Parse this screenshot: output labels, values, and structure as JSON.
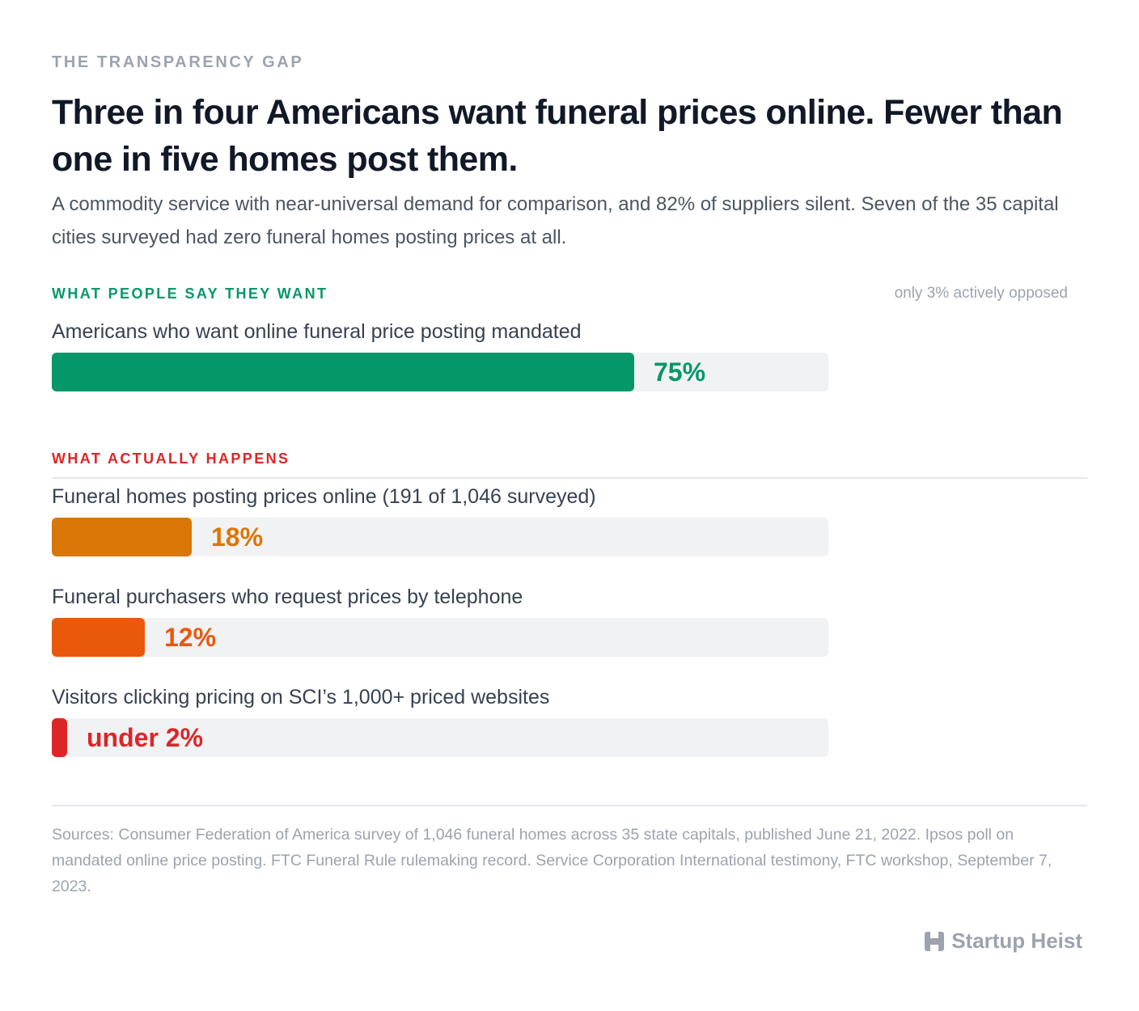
{
  "kicker": "THE TRANSPARENCY GAP",
  "headline": "Three in four Americans want funeral prices online. Fewer than one in five homes post them.",
  "dek": "A commodity service with near-universal demand for comparison, and 82% of suppliers silent. Seven of the 35 capital cities surveyed had zero funeral homes posting prices at all.",
  "sections": {
    "want": {
      "label": "WHAT PEOPLE SAY THEY WANT",
      "note": "only 3% actively opposed",
      "color": "#05976a"
    },
    "happens": {
      "label": "WHAT ACTUALLY HAPPENS",
      "color": "#dc2626"
    }
  },
  "chart_data": {
    "type": "bar",
    "orientation": "horizontal",
    "unit": "%",
    "xlim": [
      0,
      100
    ],
    "bars": [
      {
        "label": "Americans who want online funeral price posting mandated",
        "value": 75,
        "value_label": "75%",
        "color": "#05976a",
        "section": "want"
      },
      {
        "label": "Funeral homes posting prices online (191 of 1,046 surveyed)",
        "value": 18,
        "value_label": "18%",
        "color": "#d97706",
        "section": "happens"
      },
      {
        "label": "Funeral purchasers who request prices by telephone",
        "value": 12,
        "value_label": "12%",
        "color": "#ea580c",
        "section": "happens"
      },
      {
        "label": "Visitors clicking pricing on SCI’s 1,000+ priced websites",
        "value": 2,
        "value_label": "under 2%",
        "color": "#dc2626",
        "section": "happens"
      }
    ]
  },
  "sources": "Sources: Consumer Federation of America survey of 1,046 funeral homes across 35 state capitals, published June 21, 2022. Ipsos poll on mandated online price posting. FTC Funeral Rule rulemaking record. Service Corporation International testimony, FTC workshop, September 7, 2023.",
  "brand": {
    "name": "Startup Heist",
    "icon": "building-logo-icon"
  }
}
